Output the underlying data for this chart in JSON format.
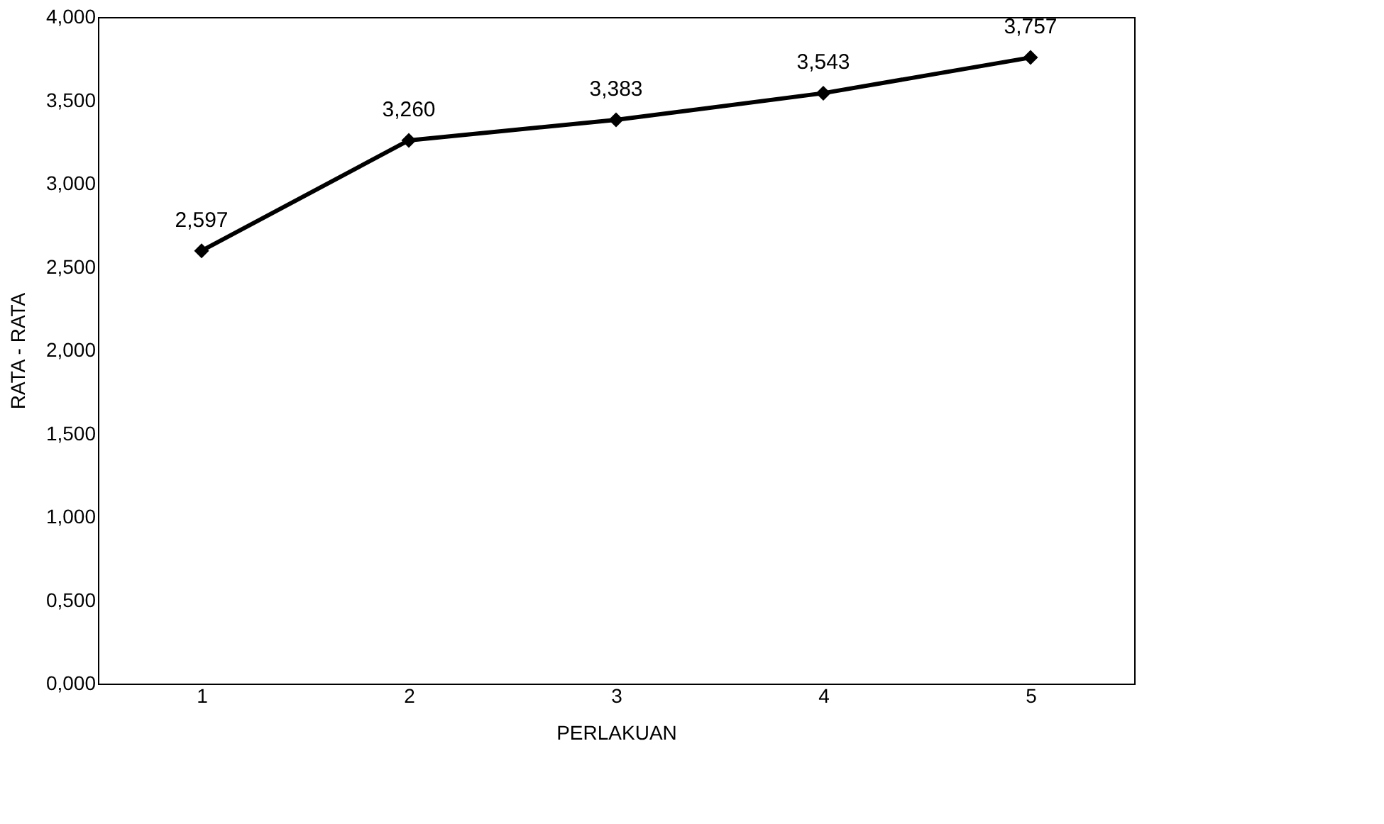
{
  "chart_data": {
    "type": "line",
    "xlabel": "PERLAKUAN",
    "ylabel": "RATA - RATA",
    "categories": [
      "1",
      "2",
      "3",
      "4",
      "5"
    ],
    "series": [
      {
        "color": "#000000",
        "values": [
          2.597,
          3.26,
          3.383,
          3.543,
          3.757
        ],
        "value_labels": [
          "2,597",
          "3,260",
          "3,383",
          "3,543",
          "3,757"
        ]
      }
    ],
    "ylim": [
      0,
      4
    ],
    "yticks": [
      {
        "value": 0,
        "label": "0,000"
      },
      {
        "value": 0.5,
        "label": "0,500"
      },
      {
        "value": 1,
        "label": "1,000"
      },
      {
        "value": 1.5,
        "label": "1,500"
      },
      {
        "value": 2,
        "label": "2,000"
      },
      {
        "value": 2.5,
        "label": "2,500"
      },
      {
        "value": 3,
        "label": "3,000"
      },
      {
        "value": 3.5,
        "label": "3,500"
      },
      {
        "value": 4,
        "label": "4,000"
      }
    ],
    "marker": "diamond",
    "line_style": "solid",
    "grid": false
  }
}
